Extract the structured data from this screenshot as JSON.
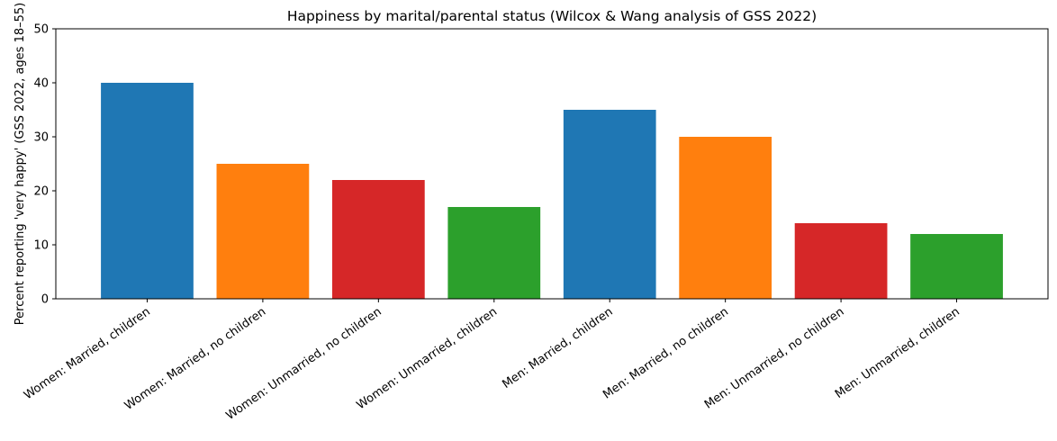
{
  "chart_data": {
    "type": "bar",
    "title": "Happiness by marital/parental status (Wilcox & Wang analysis of GSS 2022)",
    "y_label": "Percent reporting 'very happy' (GSS 2022, ages 18–55)",
    "categories": [
      "Women: Married, children",
      "Women: Married, no children",
      "Women: Unmarried, no children",
      "Women: Unmarried, children",
      "Men: Married, children",
      "Men: Married, no children",
      "Men: Unmarried, no children",
      "Men: Unmarried, children"
    ],
    "values": [
      40,
      25,
      22,
      17,
      35,
      30,
      14,
      12
    ],
    "colors": [
      "#1f77b4",
      "#ff7f0e",
      "#d62728",
      "#2ca02c",
      "#1f77b4",
      "#ff7f0e",
      "#d62728",
      "#2ca02c"
    ],
    "ylim": [
      0,
      50
    ],
    "yticks": [
      0,
      10,
      20,
      30,
      40,
      50
    ],
    "grid": false
  }
}
